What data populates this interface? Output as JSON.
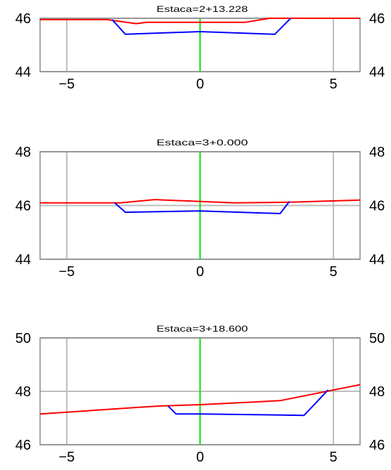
{
  "chart_data": [
    {
      "type": "line",
      "title": "Estaca=2+13.228",
      "xlim": [
        -6,
        6
      ],
      "ylim": [
        44,
        46
      ],
      "x_ticks": [
        -5,
        0,
        5
      ],
      "x_tick_labels": [
        "−5",
        "0",
        "5"
      ],
      "y_ticks": [
        44,
        46
      ],
      "y_tick_labels": [
        "44",
        "46"
      ],
      "grid": true,
      "center_line_x": 0,
      "series": [
        {
          "color": "#ff0000",
          "x": [
            -6,
            -3.5,
            -2.4,
            -2.0,
            1.7,
            2.6,
            6
          ],
          "y": [
            45.95,
            45.95,
            45.8,
            45.85,
            45.85,
            46.0,
            46.0
          ]
        },
        {
          "color": "#0000ff",
          "x": [
            -3.3,
            -2.8,
            0,
            2.8,
            3.4
          ],
          "y": [
            45.95,
            45.4,
            45.5,
            45.4,
            46.0
          ]
        }
      ]
    },
    {
      "type": "line",
      "title": "Estaca=3+0.000",
      "xlim": [
        -6,
        6
      ],
      "ylim": [
        44,
        48
      ],
      "x_ticks": [
        -5,
        0,
        5
      ],
      "x_tick_labels": [
        "−5",
        "0",
        "5"
      ],
      "y_ticks": [
        44,
        46,
        48
      ],
      "y_tick_labels": [
        "44",
        "46",
        "48"
      ],
      "grid": true,
      "center_line_x": 0,
      "series": [
        {
          "color": "#ff0000",
          "x": [
            -6,
            -3.0,
            -1.7,
            0,
            1.3,
            3.3,
            6
          ],
          "y": [
            46.1,
            46.1,
            46.22,
            46.15,
            46.1,
            46.12,
            46.2
          ]
        },
        {
          "color": "#0000ff",
          "x": [
            -3.2,
            -2.8,
            0,
            3.0,
            3.35
          ],
          "y": [
            46.1,
            45.75,
            45.8,
            45.7,
            46.15
          ]
        }
      ]
    },
    {
      "type": "line",
      "title": "Estaca=3+18.600",
      "xlim": [
        -6,
        6
      ],
      "ylim": [
        46,
        50
      ],
      "x_ticks": [
        -5,
        0,
        5
      ],
      "x_tick_labels": [
        "−5",
        "0",
        "5"
      ],
      "y_ticks": [
        46,
        48,
        50
      ],
      "y_tick_labels": [
        "46",
        "48",
        "50"
      ],
      "grid": true,
      "center_line_x": 0,
      "series": [
        {
          "color": "#ff0000",
          "x": [
            -6,
            -2.3,
            -1.5,
            0,
            2.0,
            3.0,
            5.0,
            6
          ],
          "y": [
            47.15,
            47.4,
            47.45,
            47.5,
            47.6,
            47.65,
            48.05,
            48.25
          ]
        },
        {
          "color": "#0000ff",
          "x": [
            -1.2,
            -0.9,
            0,
            3.9,
            4.8
          ],
          "y": [
            47.45,
            47.15,
            47.15,
            47.1,
            48.05
          ]
        }
      ]
    }
  ]
}
